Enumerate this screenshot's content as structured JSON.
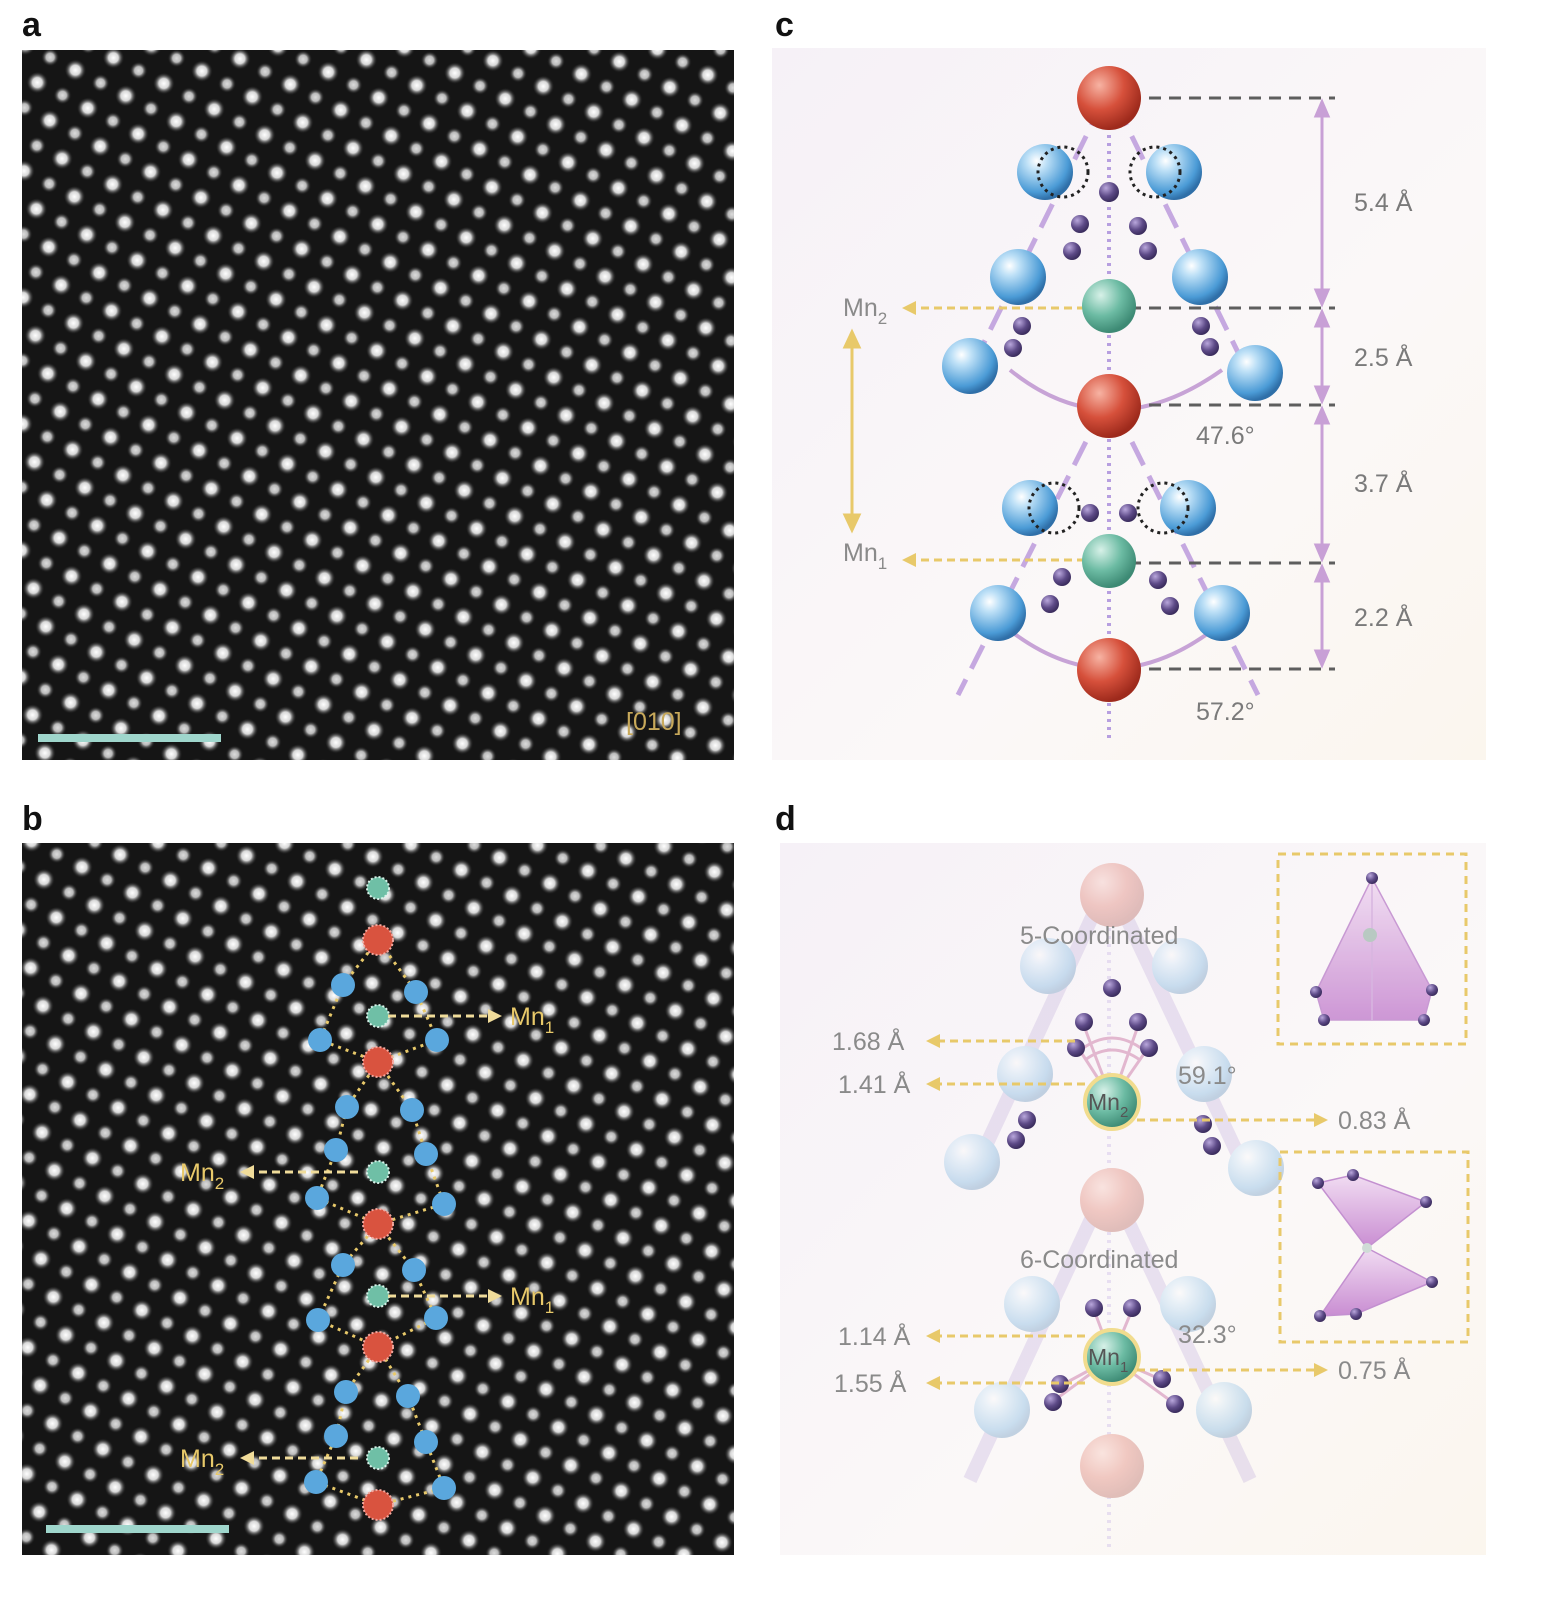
{
  "panels": {
    "a": {
      "letter": "a",
      "axis_label": "[010]"
    },
    "b": {
      "letter": "b",
      "mn1_label": "Mn",
      "mn1_sub": "1",
      "mn2_label": "Mn",
      "mn2_sub": "2"
    },
    "c": {
      "letter": "c",
      "distances": [
        "5.4 Å",
        "2.5 Å",
        "3.7 Å",
        "2.2 Å"
      ],
      "angles": [
        "47.6°",
        "57.2°"
      ],
      "mn2_label": "Mn",
      "mn2_sub": "2",
      "mn1_label": "Mn",
      "mn1_sub": "1"
    },
    "d": {
      "letter": "d",
      "coord5": "5-Coordinated",
      "coord6": "6-Coordinated",
      "bonds5": [
        "1.68 Å",
        "1.41 Å"
      ],
      "shift5": "0.83 Å",
      "angle5": "59.1°",
      "bonds6": [
        "1.14 Å",
        "1.55 Å"
      ],
      "shift6": "0.75 Å",
      "angle6": "32.3°",
      "mn2_label": "Mn",
      "mn2_sub": "2",
      "mn1_label": "Mn",
      "mn1_sub": "1"
    }
  },
  "colors": {
    "mn": "#6fbfa6",
    "o_red": "#d9533f",
    "blue": "#5aa7dd",
    "purple": "#5d4a87",
    "gold": "#e8c96a",
    "lilac": "#c6a3d8",
    "scalebar": "#9fd6cc"
  }
}
